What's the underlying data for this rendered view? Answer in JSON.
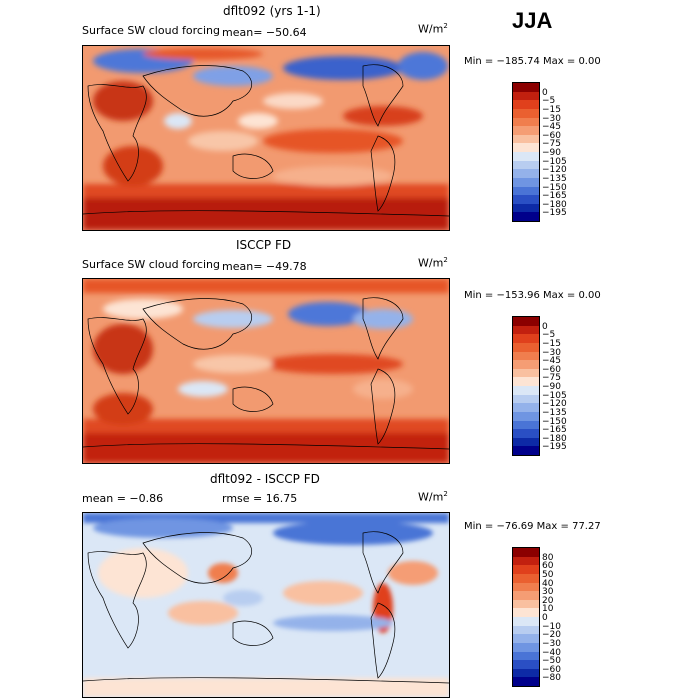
{
  "season_label": "JJA",
  "panels": [
    {
      "title": "dflt092 (yrs 1-1)",
      "left_text": "Surface SW cloud forcing",
      "stat_text": "mean=  −50.64",
      "units_base": "W/m",
      "units_exp": "2",
      "minmax": "Min = −185.74  Max =    0.00",
      "levels": [
        "0",
        "−5",
        "−15",
        "−30",
        "−45",
        "−60",
        "−75",
        "−90",
        "−105",
        "−120",
        "−135",
        "−150",
        "−165",
        "−180",
        "−195"
      ],
      "colors": [
        "#8b0000",
        "#c2200f",
        "#e0401c",
        "#ea6030",
        "#f07e4e",
        "#f59d74",
        "#f9c0a0",
        "#fde4d4",
        "#dbe7f6",
        "#b8cdf0",
        "#94b2ea",
        "#6f95e2",
        "#4a74d6",
        "#2a4fc4",
        "#0d2aa6",
        "#00008b"
      ],
      "mean_value": -50.64,
      "min_value": -185.74,
      "max_value": 0.0
    },
    {
      "title": "ISCCP FD",
      "left_text": "Surface SW cloud forcing",
      "stat_text": "mean=  −49.78",
      "units_base": "W/m",
      "units_exp": "2",
      "minmax": "Min = −153.96  Max =    0.00",
      "levels": [
        "0",
        "−5",
        "−15",
        "−30",
        "−45",
        "−60",
        "−75",
        "−90",
        "−105",
        "−120",
        "−135",
        "−150",
        "−165",
        "−180",
        "−195"
      ],
      "colors": [
        "#8b0000",
        "#c2200f",
        "#e0401c",
        "#ea6030",
        "#f07e4e",
        "#f59d74",
        "#f9c0a0",
        "#fde4d4",
        "#dbe7f6",
        "#b8cdf0",
        "#94b2ea",
        "#6f95e2",
        "#4a74d6",
        "#2a4fc4",
        "#0d2aa6",
        "#00008b"
      ],
      "mean_value": -49.78,
      "min_value": -153.96,
      "max_value": 0.0
    },
    {
      "title": "dflt092 - ISCCP FD",
      "left_text": "mean =   −0.86",
      "stat_text": "rmse =   16.75",
      "units_base": "W/m",
      "units_exp": "2",
      "minmax": "Min = −76.69  Max =  77.27",
      "levels": [
        "80",
        "60",
        "50",
        "40",
        "30",
        "20",
        "10",
        "0",
        "−10",
        "−20",
        "−30",
        "−40",
        "−50",
        "−60",
        "−80"
      ],
      "colors": [
        "#8b0000",
        "#c2200f",
        "#e0401c",
        "#ea6030",
        "#f07e4e",
        "#f59d74",
        "#f9c0a0",
        "#fde4d4",
        "#dbe7f6",
        "#b8cdf0",
        "#94b2ea",
        "#6f95e2",
        "#4a74d6",
        "#2a4fc4",
        "#0d2aa6",
        "#00008b"
      ],
      "mean_value": -0.86,
      "rmse_value": 16.75,
      "min_value": -76.69,
      "max_value": 77.27
    }
  ],
  "chart_data": [
    {
      "type": "heatmap",
      "title": "dflt092 (yrs 1-1)",
      "mean": -50.64,
      "min": -185.74,
      "max": 0.0,
      "contour_levels": [
        0,
        -5,
        -15,
        -30,
        -45,
        -60,
        -75,
        -90,
        -105,
        -120,
        -135,
        -150,
        -165,
        -180,
        -195
      ]
    },
    {
      "type": "heatmap",
      "title": "ISCCP FD",
      "mean": -49.78,
      "min": -153.96,
      "max": 0.0,
      "contour_levels": [
        0,
        -5,
        -15,
        -30,
        -45,
        -60,
        -75,
        -90,
        -105,
        -120,
        -135,
        -150,
        -165,
        -180,
        -195
      ]
    },
    {
      "type": "heatmap",
      "title": "dflt092 - ISCCP FD",
      "mean": -0.86,
      "rmse": 16.75,
      "min": -76.69,
      "max": 77.27,
      "contour_levels": [
        80,
        60,
        50,
        40,
        30,
        20,
        10,
        0,
        -10,
        -20,
        -30,
        -40,
        -50,
        -60,
        -80
      ]
    }
  ]
}
